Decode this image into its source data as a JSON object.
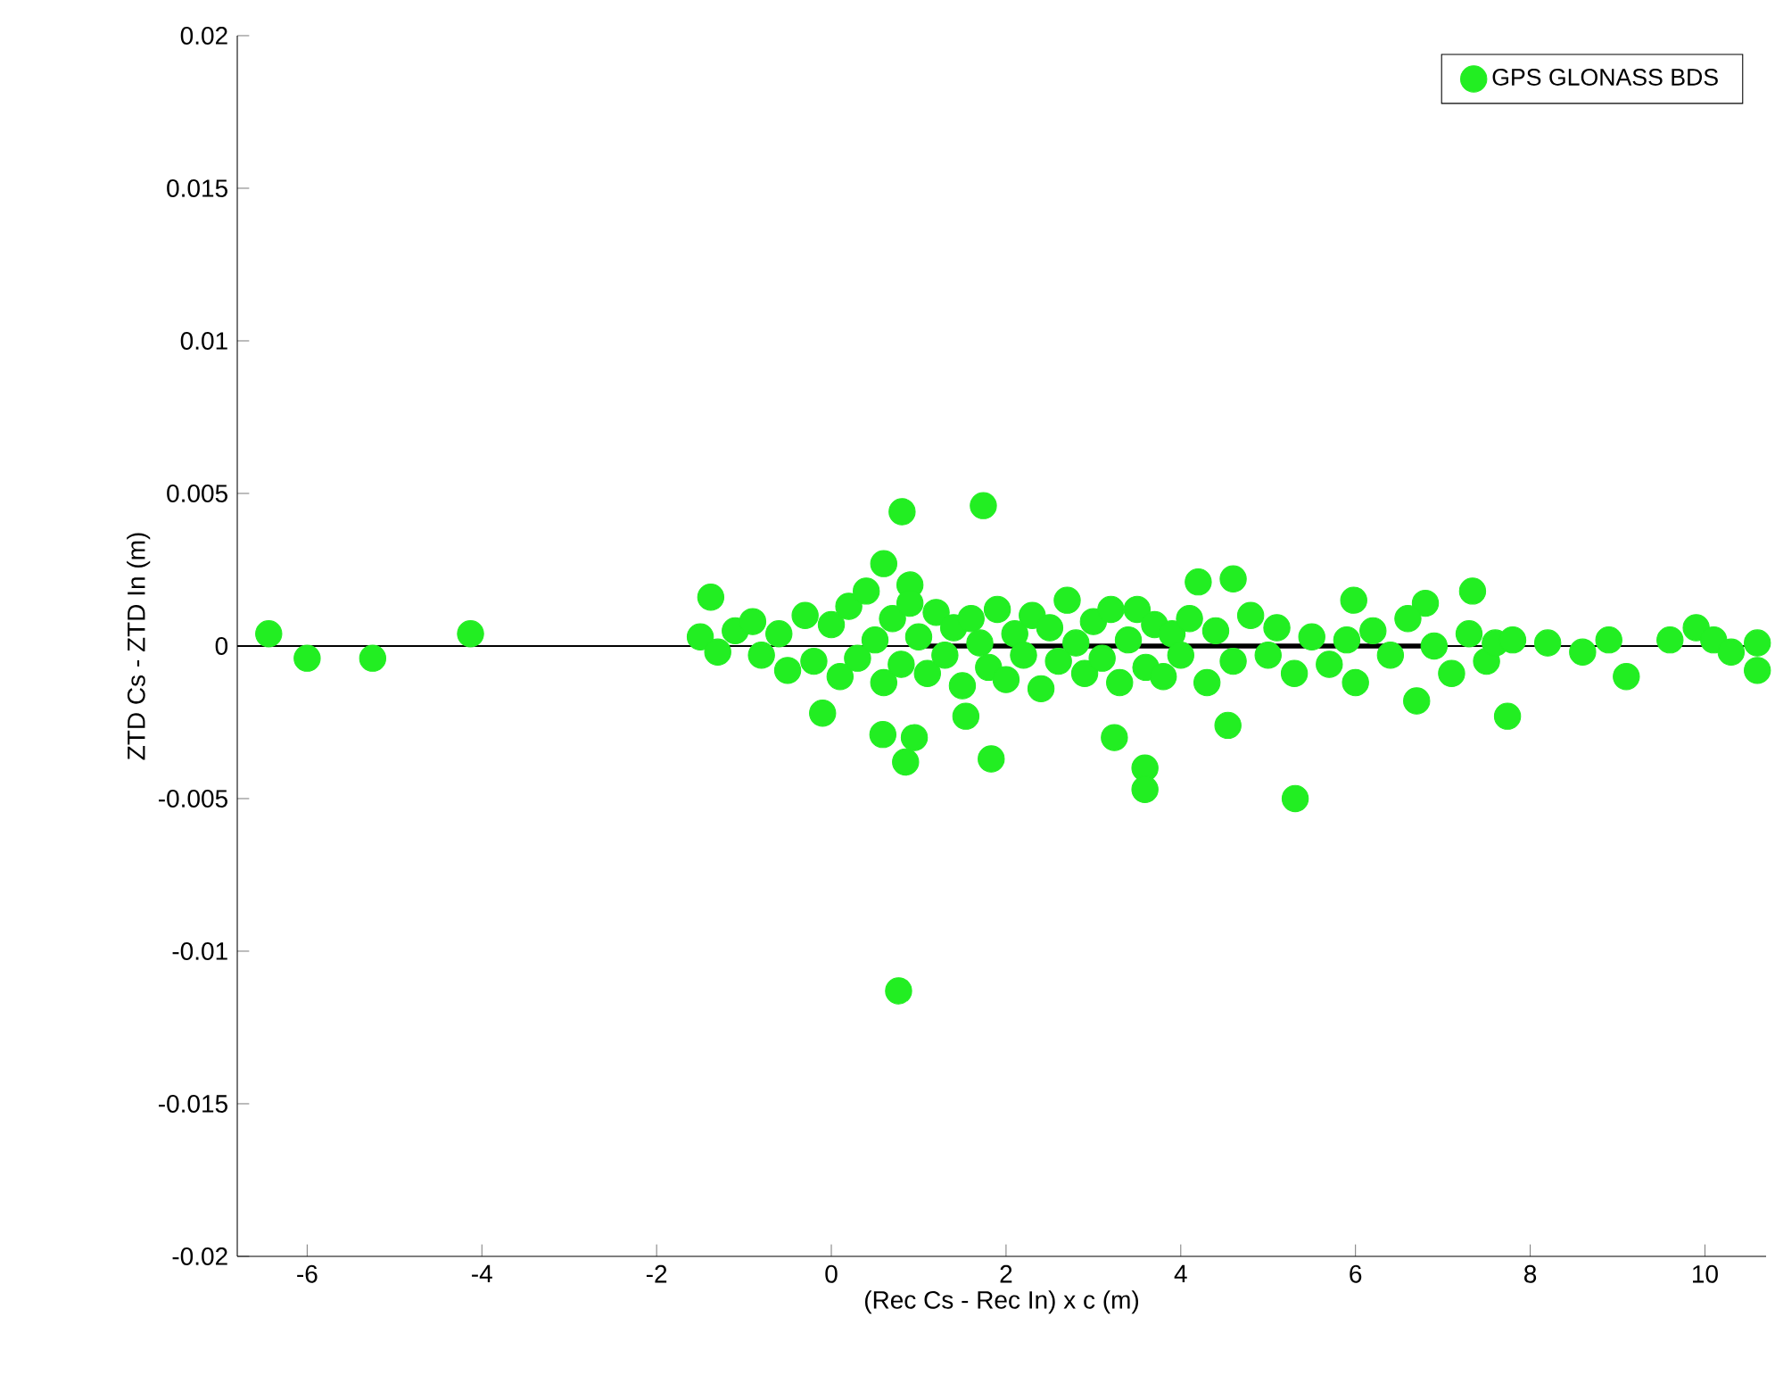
{
  "chart_data": {
    "type": "scatter",
    "xlabel": "(Rec Cs - Rec In) x c (m)",
    "ylabel": "ZTD Cs - ZTD In (m)",
    "xlim": [
      -6.8,
      10.7
    ],
    "ylim": [
      -0.02,
      0.02
    ],
    "xticks": [
      -6,
      -4,
      -2,
      0,
      2,
      4,
      6,
      8,
      10
    ],
    "yticks": [
      -0.02,
      -0.015,
      -0.01,
      -0.005,
      0,
      0.005,
      0.01,
      0.015,
      0.02
    ],
    "legend": "top right",
    "marker": "circle",
    "grid": false,
    "ref_lines": [
      {
        "axis": "y",
        "value": 0,
        "color": "#000000"
      }
    ],
    "series": [
      {
        "name": "GPS GLONASS BDS",
        "color": "#22ee22",
        "x": [
          -6.44,
          -6.0,
          -5.25,
          -4.13,
          -1.38,
          -0.1,
          0.59,
          0.95,
          0.85,
          0.77,
          1.54,
          1.83,
          3.24,
          3.59,
          3.59,
          4.54,
          5.31,
          6.7,
          7.74,
          0.81,
          1.74,
          0.6,
          0.9,
          4.2,
          4.6,
          5.98,
          6.8,
          7.34,
          3.5,
          -1.5,
          -1.3,
          -1.1,
          -0.9,
          -0.8,
          -0.6,
          -0.5,
          -0.3,
          -0.2,
          0,
          0.1,
          0.2,
          0.3,
          0.4,
          0.5,
          0.6,
          0.7,
          0.8,
          0.9,
          1.0,
          1.1,
          1.2,
          1.3,
          1.4,
          1.5,
          1.6,
          1.7,
          1.8,
          1.9,
          2.0,
          2.1,
          2.2,
          2.3,
          2.4,
          2.5,
          2.6,
          2.7,
          2.8,
          2.9,
          3.0,
          3.1,
          3.2,
          3.3,
          3.4,
          3.6,
          3.7,
          3.8,
          3.9,
          4.0,
          4.1,
          4.3,
          4.4,
          4.6,
          4.8,
          5.0,
          5.1,
          5.3,
          5.5,
          5.7,
          5.9,
          6.0,
          6.2,
          6.4,
          6.6,
          6.9,
          7.1,
          7.3,
          7.5,
          7.6,
          7.8,
          8.2,
          8.6,
          8.9,
          9.1,
          9.6,
          9.9,
          10.1,
          10.3,
          10.6,
          10.6
        ],
        "values": [
          0.0004,
          -0.0004,
          -0.0004,
          0.0004,
          0.0016,
          -0.0022,
          -0.0029,
          -0.003,
          -0.0038,
          -0.0113,
          -0.0023,
          -0.0037,
          -0.003,
          -0.004,
          -0.0047,
          -0.0026,
          -0.005,
          -0.0018,
          -0.0023,
          0.0044,
          0.0046,
          0.0027,
          0.002,
          0.0021,
          0.0022,
          0.0015,
          0.0014,
          0.0018,
          0.0012,
          0.0003,
          -0.0002,
          0.0005,
          0.0008,
          -0.0003,
          0.0004,
          -0.0008,
          0.001,
          -0.0005,
          0.0007,
          -0.001,
          0.0013,
          -0.0004,
          0.0018,
          0.0002,
          -0.0012,
          0.0009,
          -0.0006,
          0.0014,
          0.0003,
          -0.0009,
          0.0011,
          -0.0003,
          0.0006,
          -0.0013,
          0.0009,
          0.0001,
          -0.0007,
          0.0012,
          -0.0011,
          0.0004,
          -0.0003,
          0.001,
          -0.0014,
          0.0006,
          -0.0005,
          0.0015,
          0.0001,
          -0.0009,
          0.0008,
          -0.0004,
          0.0012,
          -0.0012,
          0.0002,
          -0.0007,
          0.0007,
          -0.001,
          0.0004,
          -0.0003,
          0.0009,
          -0.0012,
          0.0005,
          -0.0005,
          0.001,
          -0.0003,
          0.0006,
          -0.0009,
          0.0003,
          -0.0006,
          0.0002,
          -0.0012,
          0.0005,
          -0.0003,
          0.0009,
          0.0,
          -0.0009,
          0.0004,
          -0.0005,
          0.0001,
          0.0002,
          0.0001,
          -0.0002,
          0.0002,
          -0.001,
          0.0002,
          0.0006,
          0.0002,
          -0.0002,
          0.0001,
          -0.0008
        ]
      },
      {
        "type": "line",
        "color": "#000000",
        "marker": "none",
        "x": [
          1.0,
          7.0
        ],
        "values": [
          0,
          0
        ]
      }
    ]
  }
}
